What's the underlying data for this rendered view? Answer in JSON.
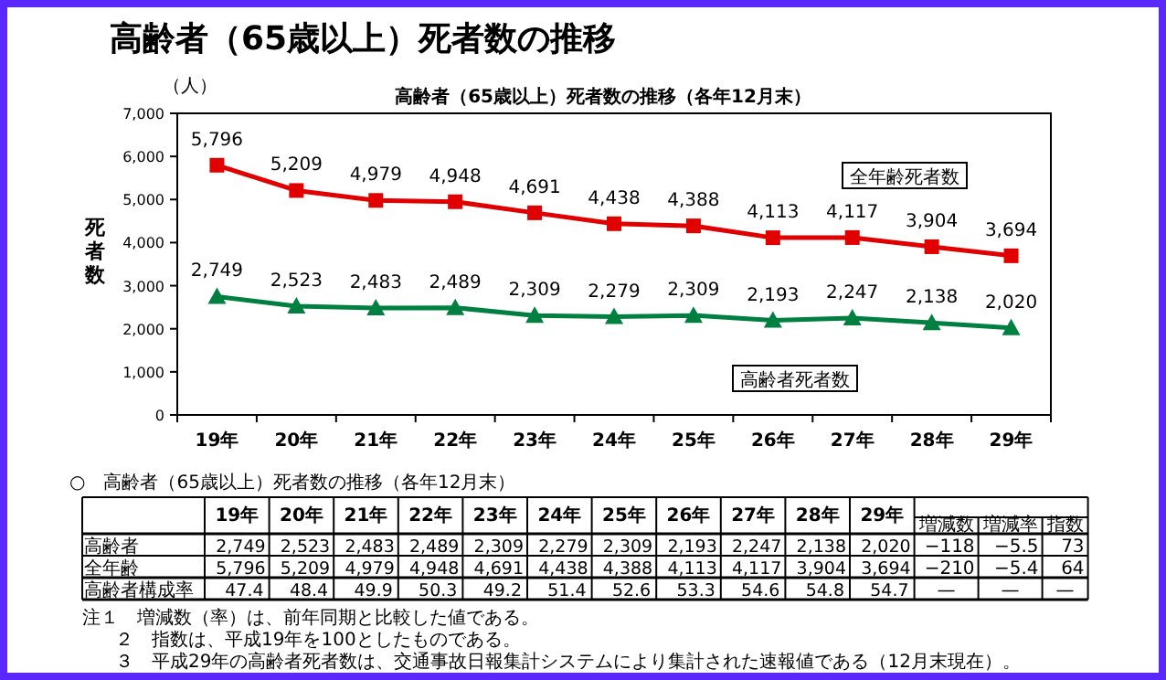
{
  "chart_data": {
    "type": "line",
    "title": "高齢者（65歳以上）死者数の推移",
    "subtitle": "高齢者（65歳以上）死者数の推移（各年12月末）",
    "ylabel": "死者数",
    "categories": [
      "19年",
      "20年",
      "21年",
      "22年",
      "23年",
      "24年",
      "25年",
      "26年",
      "27年",
      "28年",
      "29年"
    ],
    "series": [
      {
        "name": "高齢者死者数",
        "color": "#008040",
        "marker": "triangle",
        "values": [
          2749,
          2523,
          2483,
          2489,
          2309,
          2279,
          2309,
          2193,
          2247,
          2138,
          2020
        ],
        "value_labels": [
          "2,749",
          "2,523",
          "2,483",
          "2,489",
          "2,309",
          "2,279",
          "2,309",
          "2,193",
          "2,247",
          "2,138",
          "2,020"
        ]
      },
      {
        "name": "全年齢死者数",
        "color": "#e00000",
        "marker": "square",
        "values": [
          5796,
          5209,
          4979,
          4948,
          4691,
          4438,
          4388,
          4113,
          4117,
          3904,
          3694
        ],
        "value_labels": [
          "5,796",
          "5,209",
          "4,979",
          "4,948",
          "4,691",
          "4,438",
          "4,388",
          "4,113",
          "4,117",
          "3,904",
          "3,694"
        ]
      }
    ],
    "ylim": [
      0,
      7000
    ],
    "yticks": [
      {
        "value": 0,
        "label": "0"
      },
      {
        "value": 1000,
        "label": "1,000"
      },
      {
        "value": 2000,
        "label": "2,000"
      },
      {
        "value": 3000,
        "label": "3,000"
      },
      {
        "value": 4000,
        "label": "4,000"
      },
      {
        "value": 5000,
        "label": "5,000"
      },
      {
        "value": 6000,
        "label": "6,000"
      },
      {
        "value": 7000,
        "label": "7,000"
      }
    ],
    "legend": false,
    "grid": false,
    "annotations": [
      "（人）",
      "○　高齢者（65歳以上）死者数の推移（各年12月末）",
      "増減数",
      "増減率",
      "指数",
      "高齢者",
      "−118",
      "−5.5",
      "73",
      "全年齢",
      "−210",
      "−5.4",
      "64",
      "高齢者構成率",
      "47.4",
      "48.4",
      "49.9",
      "50.3",
      "49.2",
      "51.4",
      "52.6",
      "53.3",
      "54.6",
      "54.8",
      "54.7",
      "—",
      "—",
      "—",
      "注１　増減数（率）は、前年同期と比較した値である。",
      "２　指数は、平成19年を100としたものである。",
      "３　平成29年の高齢者死者数は、交通事故日報集計システムにより集計された速報値である（12月末現在）。"
    ]
  }
}
